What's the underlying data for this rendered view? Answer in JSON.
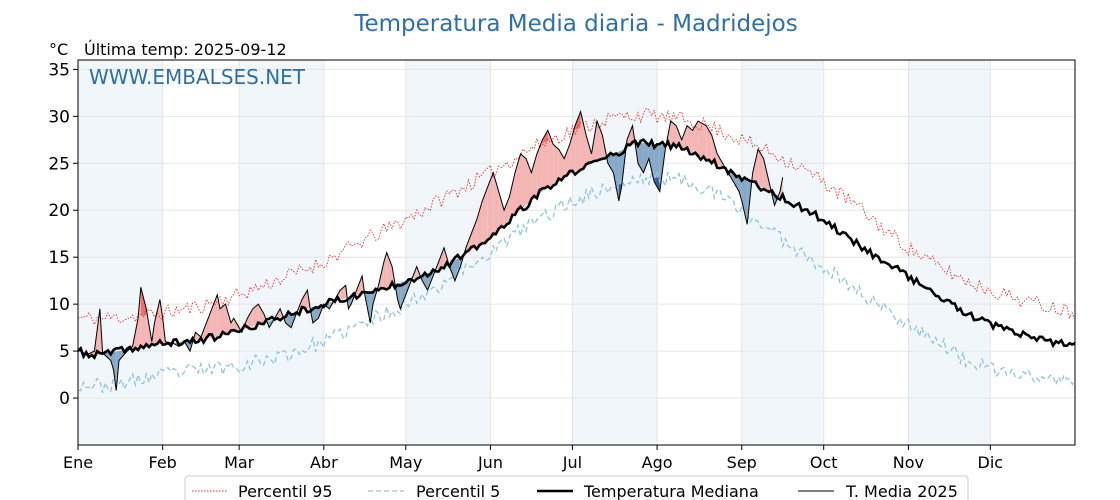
{
  "chart_data": {
    "type": "line",
    "title": "Temperatura Media diaria - Madridejos",
    "unit_label": "°C",
    "last_temp_label": "Última temp: 2025-09-12",
    "watermark": "WWW.EMBALSES.NET",
    "ylim": [
      -5,
      36
    ],
    "yticks": [
      0,
      5,
      10,
      15,
      20,
      25,
      30,
      35
    ],
    "xlim": [
      0,
      365
    ],
    "month_ticks": [
      {
        "label": "Ene",
        "day": 0
      },
      {
        "label": "Feb",
        "day": 31
      },
      {
        "label": "Mar",
        "day": 59
      },
      {
        "label": "Abr",
        "day": 90
      },
      {
        "label": "May",
        "day": 120
      },
      {
        "label": "Jun",
        "day": 151
      },
      {
        "label": "Jul",
        "day": 181
      },
      {
        "label": "Ago",
        "day": 212
      },
      {
        "label": "Sep",
        "day": 243
      },
      {
        "label": "Oct",
        "day": 273
      },
      {
        "label": "Nov",
        "day": 304
      },
      {
        "label": "Dic",
        "day": 334
      }
    ],
    "grid": true,
    "legend_position": "bottom",
    "series": [
      {
        "name": "Percentil 95",
        "color": "#e8312a",
        "style": "dotted",
        "points": [
          [
            0,
            8.5
          ],
          [
            10,
            8.5
          ],
          [
            20,
            8.7
          ],
          [
            31,
            9.0
          ],
          [
            45,
            9.8
          ],
          [
            59,
            11.0
          ],
          [
            75,
            12.8
          ],
          [
            90,
            14.5
          ],
          [
            105,
            16.8
          ],
          [
            120,
            19.0
          ],
          [
            135,
            21.5
          ],
          [
            151,
            24.0
          ],
          [
            165,
            26.5
          ],
          [
            181,
            28.5
          ],
          [
            195,
            29.8
          ],
          [
            205,
            30.2
          ],
          [
            212,
            30.0
          ],
          [
            225,
            29.5
          ],
          [
            235,
            28.5
          ],
          [
            243,
            27.5
          ],
          [
            255,
            26.0
          ],
          [
            265,
            24.5
          ],
          [
            273,
            23.0
          ],
          [
            285,
            20.5
          ],
          [
            295,
            18.0
          ],
          [
            304,
            16.0
          ],
          [
            315,
            14.0
          ],
          [
            325,
            12.5
          ],
          [
            334,
            11.5
          ],
          [
            345,
            10.5
          ],
          [
            355,
            9.8
          ],
          [
            365,
            9.2
          ]
        ]
      },
      {
        "name": "Percentil 5",
        "color": "#8fc4dc",
        "style": "dashed",
        "points": [
          [
            0,
            1.5
          ],
          [
            10,
            1.3
          ],
          [
            20,
            1.8
          ],
          [
            31,
            2.5
          ],
          [
            45,
            3.0
          ],
          [
            59,
            3.5
          ],
          [
            75,
            4.5
          ],
          [
            90,
            6.0
          ],
          [
            105,
            8.0
          ],
          [
            120,
            10.0
          ],
          [
            135,
            12.5
          ],
          [
            151,
            15.5
          ],
          [
            165,
            18.5
          ],
          [
            181,
            21.0
          ],
          [
            195,
            22.5
          ],
          [
            205,
            23.2
          ],
          [
            212,
            23.5
          ],
          [
            225,
            23.0
          ],
          [
            235,
            21.5
          ],
          [
            243,
            20.0
          ],
          [
            255,
            17.5
          ],
          [
            265,
            15.5
          ],
          [
            273,
            14.0
          ],
          [
            285,
            11.5
          ],
          [
            295,
            9.5
          ],
          [
            304,
            8.0
          ],
          [
            315,
            6.0
          ],
          [
            325,
            4.0
          ],
          [
            334,
            3.0
          ],
          [
            345,
            2.5
          ],
          [
            355,
            2.0
          ],
          [
            365,
            1.8
          ]
        ]
      },
      {
        "name": "Temperatura Mediana",
        "color": "#000000",
        "style": "thick",
        "points": [
          [
            0,
            5.0
          ],
          [
            5,
            4.5
          ],
          [
            10,
            4.8
          ],
          [
            15,
            5.0
          ],
          [
            20,
            5.3
          ],
          [
            31,
            5.8
          ],
          [
            40,
            6.0
          ],
          [
            50,
            6.5
          ],
          [
            59,
            7.2
          ],
          [
            70,
            8.2
          ],
          [
            80,
            9.2
          ],
          [
            90,
            10.0
          ],
          [
            100,
            10.8
          ],
          [
            110,
            11.5
          ],
          [
            120,
            12.5
          ],
          [
            130,
            13.5
          ],
          [
            140,
            15.0
          ],
          [
            151,
            17.0
          ],
          [
            160,
            19.5
          ],
          [
            170,
            22.0
          ],
          [
            181,
            24.0
          ],
          [
            190,
            25.2
          ],
          [
            200,
            26.5
          ],
          [
            205,
            27.2
          ],
          [
            212,
            27.0
          ],
          [
            220,
            26.8
          ],
          [
            230,
            25.5
          ],
          [
            243,
            23.5
          ],
          [
            250,
            22.5
          ],
          [
            260,
            21.0
          ],
          [
            273,
            19.0
          ],
          [
            280,
            17.5
          ],
          [
            290,
            15.5
          ],
          [
            304,
            13.0
          ],
          [
            315,
            10.8
          ],
          [
            325,
            9.0
          ],
          [
            334,
            7.8
          ],
          [
            345,
            6.8
          ],
          [
            355,
            6.0
          ],
          [
            365,
            5.5
          ]
        ]
      },
      {
        "name": "T. Media 2025",
        "color": "#000000",
        "style": "thin",
        "points": [
          [
            0,
            5.2
          ],
          [
            3,
            4.6
          ],
          [
            6,
            5.0
          ],
          [
            8,
            9.5
          ],
          [
            9,
            4.8
          ],
          [
            12,
            4.0
          ],
          [
            13,
            3.0
          ],
          [
            14,
            0.8
          ],
          [
            15,
            4.0
          ],
          [
            18,
            5.0
          ],
          [
            20,
            5.5
          ],
          [
            22,
            8.5
          ],
          [
            23,
            11.8
          ],
          [
            25,
            9.5
          ],
          [
            27,
            6.0
          ],
          [
            28,
            8.0
          ],
          [
            30,
            10.5
          ],
          [
            31,
            8.5
          ],
          [
            32,
            6.0
          ],
          [
            35,
            5.8
          ],
          [
            37,
            5.5
          ],
          [
            39,
            6.0
          ],
          [
            41,
            5.0
          ],
          [
            43,
            7.0
          ],
          [
            45,
            6.5
          ],
          [
            47,
            8.0
          ],
          [
            49,
            9.5
          ],
          [
            51,
            11.0
          ],
          [
            52,
            9.5
          ],
          [
            54,
            10.0
          ],
          [
            56,
            8.0
          ],
          [
            57,
            8.5
          ],
          [
            60,
            7.0
          ],
          [
            62,
            8.5
          ],
          [
            64,
            9.5
          ],
          [
            66,
            10.0
          ],
          [
            68,
            9.0
          ],
          [
            70,
            7.5
          ],
          [
            72,
            8.5
          ],
          [
            74,
            9.5
          ],
          [
            76,
            8.0
          ],
          [
            78,
            7.5
          ],
          [
            80,
            9.0
          ],
          [
            82,
            10.5
          ],
          [
            84,
            11.5
          ],
          [
            85,
            9.5
          ],
          [
            86,
            8.0
          ],
          [
            88,
            8.5
          ],
          [
            90,
            10.0
          ],
          [
            92,
            9.5
          ],
          [
            94,
            10.5
          ],
          [
            96,
            11.5
          ],
          [
            98,
            12.0
          ],
          [
            99,
            9.5
          ],
          [
            100,
            10.0
          ],
          [
            102,
            11.5
          ],
          [
            104,
            13.0
          ],
          [
            105,
            11.0
          ],
          [
            107,
            8.0
          ],
          [
            108,
            10.0
          ],
          [
            110,
            12.0
          ],
          [
            112,
            14.5
          ],
          [
            113,
            15.5
          ],
          [
            115,
            14.0
          ],
          [
            117,
            10.5
          ],
          [
            118,
            9.5
          ],
          [
            120,
            11.0
          ],
          [
            122,
            12.5
          ],
          [
            124,
            14.0
          ],
          [
            126,
            12.5
          ],
          [
            128,
            11.5
          ],
          [
            130,
            13.0
          ],
          [
            132,
            14.5
          ],
          [
            134,
            16.0
          ],
          [
            136,
            14.0
          ],
          [
            138,
            12.5
          ],
          [
            140,
            14.0
          ],
          [
            142,
            16.0
          ],
          [
            144,
            17.5
          ],
          [
            146,
            19.0
          ],
          [
            148,
            21.0
          ],
          [
            150,
            22.5
          ],
          [
            152,
            24.0
          ],
          [
            154,
            22.0
          ],
          [
            156,
            20.0
          ],
          [
            158,
            21.5
          ],
          [
            160,
            24.0
          ],
          [
            162,
            26.0
          ],
          [
            164,
            25.5
          ],
          [
            166,
            24.0
          ],
          [
            168,
            26.0
          ],
          [
            170,
            27.5
          ],
          [
            172,
            28.5
          ],
          [
            174,
            27.0
          ],
          [
            176,
            26.5
          ],
          [
            178,
            25.5
          ],
          [
            180,
            27.0
          ],
          [
            182,
            29.0
          ],
          [
            184,
            30.5
          ],
          [
            186,
            28.0
          ],
          [
            188,
            26.0
          ],
          [
            190,
            29.5
          ],
          [
            192,
            28.0
          ],
          [
            194,
            25.0
          ],
          [
            196,
            24.0
          ],
          [
            198,
            21.0
          ],
          [
            199,
            22.5
          ],
          [
            201,
            27.5
          ],
          [
            203,
            29.0
          ],
          [
            205,
            25.0
          ],
          [
            207,
            24.0
          ],
          [
            209,
            25.5
          ],
          [
            211,
            23.0
          ],
          [
            213,
            22.0
          ],
          [
            215,
            26.5
          ],
          [
            217,
            29.5
          ],
          [
            219,
            29.0
          ],
          [
            221,
            27.5
          ],
          [
            223,
            29.0
          ],
          [
            225,
            28.5
          ],
          [
            227,
            29.5
          ],
          [
            230,
            29.0
          ],
          [
            232,
            28.0
          ],
          [
            234,
            26.0
          ],
          [
            236,
            25.0
          ],
          [
            240,
            23.0
          ],
          [
            242,
            22.0
          ],
          [
            243,
            21.0
          ],
          [
            245,
            18.5
          ],
          [
            247,
            24.0
          ],
          [
            249,
            26.5
          ],
          [
            251,
            25.5
          ],
          [
            253,
            23.0
          ],
          [
            255,
            20.5
          ],
          [
            257,
            22.0
          ],
          [
            258,
            23.5
          ]
        ]
      }
    ]
  }
}
